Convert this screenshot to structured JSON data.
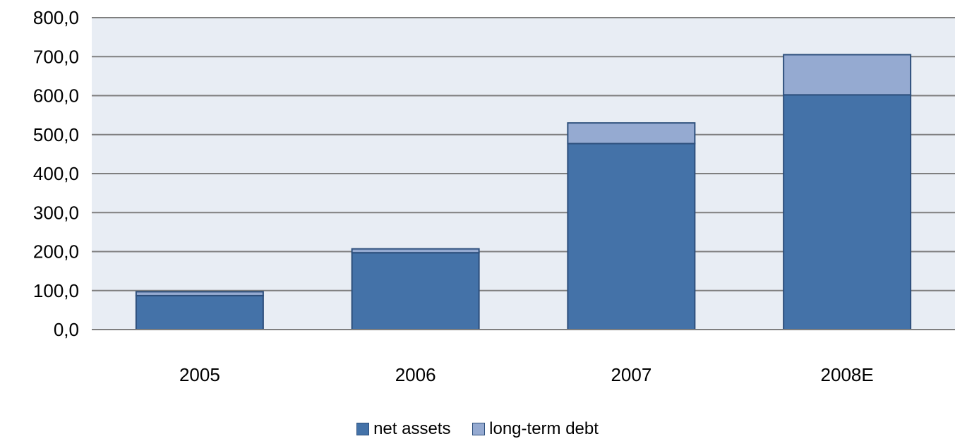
{
  "chart_data": {
    "type": "bar",
    "stacked": true,
    "categories": [
      "2005",
      "2006",
      "2007",
      "2008E"
    ],
    "series": [
      {
        "name": "net assets",
        "values": [
          87,
          197,
          477,
          602
        ],
        "color": "#4472a8"
      },
      {
        "name": "long-term debt",
        "values": [
          10,
          10,
          53,
          103
        ],
        "color": "#95aad1"
      }
    ],
    "ylim": [
      0,
      800
    ],
    "yticks": [
      "0,0",
      "100,0",
      "200,0",
      "300,0",
      "400,0",
      "500,0",
      "600,0",
      "700,0",
      "800,0"
    ],
    "grid": true,
    "legend_position": "bottom",
    "plot_background": "#e8edf4",
    "title": "",
    "xlabel": "",
    "ylabel": ""
  }
}
